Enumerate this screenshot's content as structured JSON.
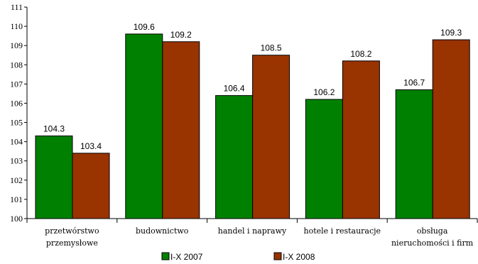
{
  "chart_data": {
    "type": "bar",
    "categories": [
      [
        "przetwórstwo",
        "przemysłowe"
      ],
      [
        "budownictwo"
      ],
      [
        "handel i naprawy"
      ],
      [
        "hotele i restauracje"
      ],
      [
        "obsługa",
        "nieruchomości i firm"
      ]
    ],
    "series": [
      {
        "name": "I-X 2007",
        "color": "#008000",
        "values": [
          104.3,
          109.6,
          106.4,
          106.2,
          106.7
        ],
        "labels": [
          "104.3",
          "109.6",
          "106.4",
          "106.2",
          "106.7"
        ]
      },
      {
        "name": "I-X 2008",
        "color": "#993300",
        "values": [
          103.4,
          109.2,
          108.5,
          108.2,
          109.3
        ],
        "labels": [
          "103.4",
          "109.2",
          "108.5",
          "108.2",
          "109.3"
        ]
      }
    ],
    "title": "",
    "xlabel": "",
    "ylabel": "",
    "ylim": [
      100,
      111
    ],
    "yticks": [
      "100",
      "101",
      "102",
      "103",
      "104",
      "105",
      "106",
      "107",
      "108",
      "109",
      "110",
      "111"
    ],
    "grid": false,
    "legend": "bottom"
  }
}
